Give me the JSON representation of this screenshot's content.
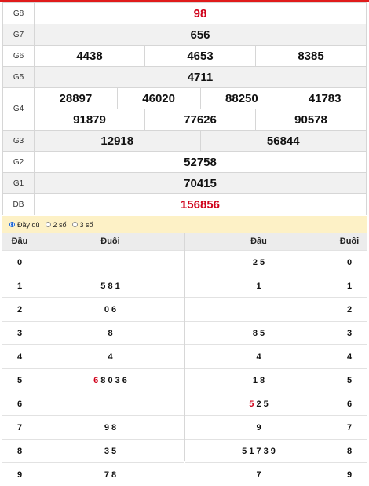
{
  "prizes": [
    {
      "label": "G8",
      "numbers": [
        "98"
      ],
      "red": true,
      "shade": false
    },
    {
      "label": "G7",
      "numbers": [
        "656"
      ],
      "shade": true
    },
    {
      "label": "G6",
      "numbers": [
        "4438",
        "4653",
        "8385"
      ],
      "shade": false
    },
    {
      "label": "G5",
      "numbers": [
        "4711"
      ],
      "shade": true
    },
    {
      "label": "G4",
      "numbers": [
        "28897",
        "46020",
        "88250",
        "41783",
        "91879",
        "77626",
        "90578"
      ],
      "shade": false
    },
    {
      "label": "G3",
      "numbers": [
        "12918",
        "56844"
      ],
      "shade": true
    },
    {
      "label": "G2",
      "numbers": [
        "52758"
      ],
      "shade": false
    },
    {
      "label": "G1",
      "numbers": [
        "70415"
      ],
      "shade": true
    },
    {
      "label": "ĐB",
      "numbers": [
        "156856"
      ],
      "red": true,
      "shade": false
    }
  ],
  "options": [
    {
      "label": "Đầy đủ",
      "checked": true
    },
    {
      "label": "2 số",
      "checked": false
    },
    {
      "label": "3 số",
      "checked": false
    }
  ],
  "loto": {
    "left_headers": [
      "Đầu",
      "Đuôi"
    ],
    "right_headers": [
      "Đầu",
      "Đuôi"
    ],
    "rows": [
      {
        "dau": "0",
        "duoi_left": "",
        "dau_right": "2 5",
        "duoi_right": "0"
      },
      {
        "dau": "1",
        "duoi_left": "5 8 1",
        "dau_right": "1",
        "duoi_right": "1"
      },
      {
        "dau": "2",
        "duoi_left": "0 6",
        "dau_right": "",
        "duoi_right": "2"
      },
      {
        "dau": "3",
        "duoi_left": "8",
        "dau_right": "8 5",
        "duoi_right": "3"
      },
      {
        "dau": "4",
        "duoi_left": "4",
        "dau_right": "4",
        "duoi_right": "4"
      },
      {
        "dau": "5",
        "duoi_left_red": "6",
        "duoi_left": "8 0 3 6",
        "dau_right": "1 8",
        "duoi_right": "5"
      },
      {
        "dau": "6",
        "duoi_left": "",
        "dau_right_red": "5",
        "dau_right": "2 5",
        "duoi_right": "6"
      },
      {
        "dau": "7",
        "duoi_left": "9 8",
        "dau_right": "9",
        "duoi_right": "7"
      },
      {
        "dau": "8",
        "duoi_left": "3 5",
        "dau_right": "5 1 7 3 9",
        "duoi_right": "8"
      },
      {
        "dau": "9",
        "duoi_left": "7 8",
        "dau_right": "7",
        "duoi_right": "9"
      }
    ]
  },
  "colors": {
    "accent_red": "#d0021b",
    "option_bg": "#fdf1c6",
    "row_shade": "#f1f1f1"
  }
}
